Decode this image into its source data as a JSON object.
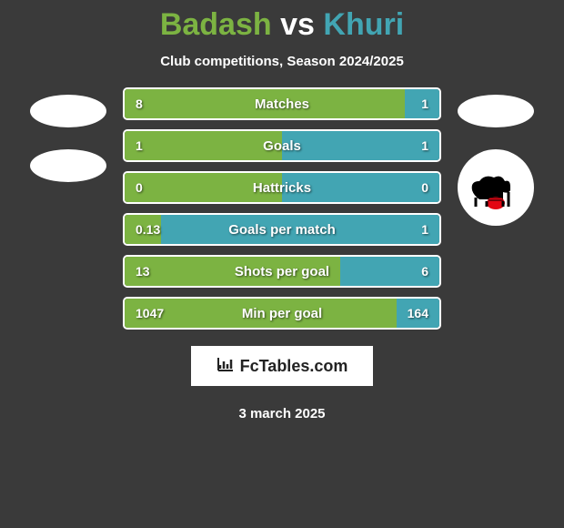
{
  "title": {
    "p1": "Badash",
    "vs": "vs",
    "p2": "Khuri"
  },
  "subtitle": "Club competitions, Season 2024/2025",
  "colors": {
    "p1": "#7cb342",
    "p2": "#42a5b3",
    "border": "#ffffff",
    "bg": "#3a3a3a",
    "text": "#ffffff"
  },
  "stats": [
    {
      "label": "Matches",
      "v1": "8",
      "v2": "1",
      "n1": 8,
      "n2": 1,
      "p1_pct": 88.9,
      "p2_pct": 11.1
    },
    {
      "label": "Goals",
      "v1": "1",
      "v2": "1",
      "n1": 1,
      "n2": 1,
      "p1_pct": 50,
      "p2_pct": 50
    },
    {
      "label": "Hattricks",
      "v1": "0",
      "v2": "0",
      "n1": 0,
      "n2": 0,
      "p1_pct": 50,
      "p2_pct": 50
    },
    {
      "label": "Goals per match",
      "v1": "0.13",
      "v2": "1",
      "n1": 0.13,
      "n2": 1,
      "p1_pct": 11.5,
      "p2_pct": 88.5
    },
    {
      "label": "Shots per goal",
      "v1": "13",
      "v2": "6",
      "n1": 13,
      "n2": 6,
      "p1_pct": 68.4,
      "p2_pct": 31.6
    },
    {
      "label": "Min per goal",
      "v1": "1047",
      "v2": "164",
      "n1": 1047,
      "n2": 164,
      "p1_pct": 86.5,
      "p2_pct": 13.5
    }
  ],
  "branding": {
    "text": "FcTables.com"
  },
  "date": "3 march 2025",
  "club_logo": {
    "accent": "#e30613",
    "animal": "#000000"
  }
}
